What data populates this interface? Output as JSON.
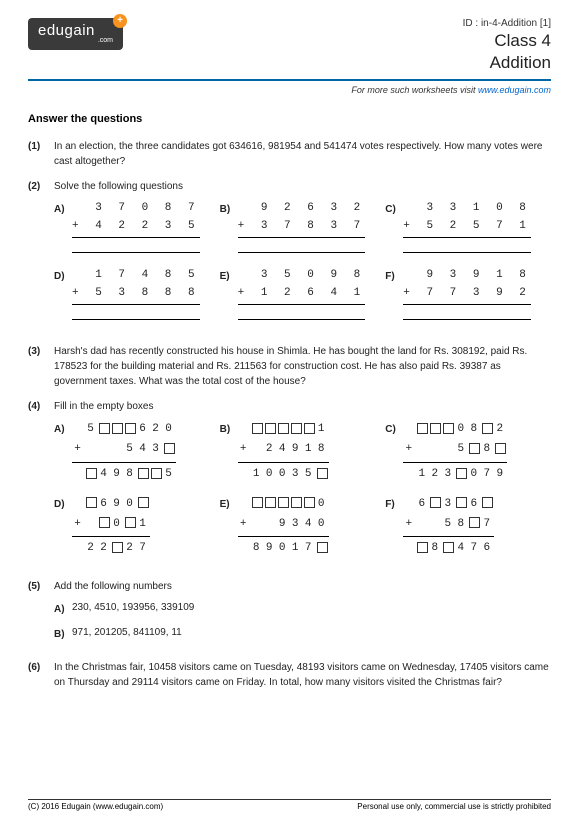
{
  "header": {
    "logo_text": "edugain",
    "logo_sub": ".com",
    "logo_badge": "+",
    "id_line": "ID : in-4-Addition [1]",
    "class_line": "Class 4",
    "topic": "Addition",
    "subhead_prefix": "For more such worksheets visit ",
    "subhead_link": "www.edugain.com"
  },
  "section_title": "Answer the questions",
  "q1": {
    "num": "(1)",
    "text": "In an election, the three candidates got 634616, 981954 and 541474 votes respectively. How many votes were cast altogether?"
  },
  "q2": {
    "num": "(2)",
    "text": "Solve the following questions",
    "items": [
      {
        "label": "A)",
        "top": "  3 7 0 8 7",
        "bot": "+ 4 2 2 3 5"
      },
      {
        "label": "B)",
        "top": "  9 2 6 3 2",
        "bot": "+ 3 7 8 3 7"
      },
      {
        "label": "C)",
        "top": "  3 3 1 0 8",
        "bot": "+ 5 2 5 7 1"
      },
      {
        "label": "D)",
        "top": "  1 7 4 8 5",
        "bot": "+ 5 3 8 8 8"
      },
      {
        "label": "E)",
        "top": "  3 5 0 9 8",
        "bot": "+ 1 2 6 4 1"
      },
      {
        "label": "F)",
        "top": "  9 3 9 1 8",
        "bot": "+ 7 7 3 9 2"
      }
    ]
  },
  "q3": {
    "num": "(3)",
    "text": "Harsh's dad has recently constructed his house in Shimla. He has bought the land for Rs. 308192, paid Rs. 178523 for the building material and Rs. 211563 for construction cost. He has also paid Rs. 39387 as government taxes. What was the total cost of the house?"
  },
  "q4": {
    "num": "(4)",
    "text": "Fill in the empty boxes",
    "items": [
      {
        "label": "A)",
        "r1": [
          " ",
          "5",
          "B",
          "B",
          "B",
          "6",
          "2",
          "0"
        ],
        "r2": [
          "+",
          " ",
          " ",
          " ",
          "5",
          "4",
          "3",
          "B"
        ],
        "r3": [
          " ",
          "B",
          "4",
          "9",
          "8",
          "B",
          "B",
          "5"
        ]
      },
      {
        "label": "B)",
        "r1": [
          " ",
          "B",
          "B",
          "B",
          "B",
          "B",
          "1"
        ],
        "r2": [
          "+",
          " ",
          "2",
          "4",
          "9",
          "1",
          "8"
        ],
        "r3": [
          " ",
          "1",
          "0",
          "0",
          "3",
          "5",
          "B"
        ]
      },
      {
        "label": "C)",
        "r1": [
          " ",
          "B",
          "B",
          "B",
          "0",
          "8",
          "B",
          "2"
        ],
        "r2": [
          "+",
          " ",
          " ",
          " ",
          "5",
          "B",
          "8",
          "B"
        ],
        "r3": [
          " ",
          "1",
          "2",
          "3",
          "B",
          "0",
          "7",
          "9"
        ]
      },
      {
        "label": "D)",
        "r1": [
          " ",
          "B",
          "6",
          "9",
          "0",
          "B"
        ],
        "r2": [
          "+",
          " ",
          "B",
          "0",
          "B",
          "1"
        ],
        "r3": [
          " ",
          "2",
          "2",
          "B",
          "2",
          "7"
        ]
      },
      {
        "label": "E)",
        "r1": [
          " ",
          "B",
          "B",
          "B",
          "B",
          "B",
          "0"
        ],
        "r2": [
          "+",
          " ",
          " ",
          "9",
          "3",
          "4",
          "0"
        ],
        "r3": [
          " ",
          "8",
          "9",
          "0",
          "1",
          "7",
          "B"
        ]
      },
      {
        "label": "F)",
        "r1": [
          " ",
          "6",
          "B",
          "3",
          "B",
          "6",
          "B"
        ],
        "r2": [
          "+",
          " ",
          " ",
          "5",
          "8",
          "B",
          "7"
        ],
        "r3": [
          " ",
          "B",
          "8",
          "B",
          "4",
          "7",
          "6"
        ]
      }
    ]
  },
  "q5": {
    "num": "(5)",
    "text": "Add the following numbers",
    "items": [
      {
        "label": "A)",
        "text": "230, 4510, 193956, 339109"
      },
      {
        "label": "B)",
        "text": "971, 201205, 841109, 11"
      }
    ]
  },
  "q6": {
    "num": "(6)",
    "text": "In the Christmas fair, 10458 visitors came on Tuesday, 48193 visitors came on Wednesday, 17405 visitors came on Thursday and 29114 visitors came on Friday. In total, how many visitors visited the Christmas fair?"
  },
  "footer": {
    "left": "(C) 2016 Edugain (www.edugain.com)",
    "right": "Personal use only, commercial use is strictly prohibited"
  }
}
